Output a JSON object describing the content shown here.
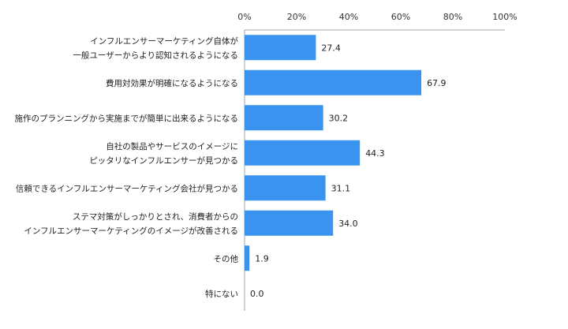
{
  "chart_data": {
    "type": "bar",
    "orientation": "horizontal",
    "categories": [
      [
        "インフルエンサーマーケティング自体が",
        "一般ユーザーからより認知されるようになる"
      ],
      [
        "費用対効果が明確になるようになる"
      ],
      [
        "施作のプランニングから実施までが簡単に出来るようになる"
      ],
      [
        "自社の製品やサービスのイメージに",
        "ピッタリなインフルエンサーが見つかる"
      ],
      [
        "信頼できるインフルエンサーマーケティング会社が見つかる"
      ],
      [
        "ステマ対策がしっかりとされ、消費者からの",
        "インフルエンサーマーケティングのイメージが改善される"
      ],
      [
        "その他"
      ],
      [
        "特にない"
      ]
    ],
    "values": [
      27.4,
      67.9,
      30.2,
      44.3,
      31.1,
      34.0,
      1.9,
      0.0
    ],
    "value_labels": [
      "27.4",
      "67.9",
      "30.2",
      "44.3",
      "31.1",
      "34.0",
      "1.9",
      "0.0"
    ],
    "xlim": [
      0,
      100
    ],
    "xticks": [
      "0%",
      "20%",
      "40%",
      "60%",
      "80%",
      "100%"
    ],
    "grid": false,
    "legend": "none",
    "bar_color": "#3a93ee",
    "axis_color": "#a6a6a6"
  }
}
